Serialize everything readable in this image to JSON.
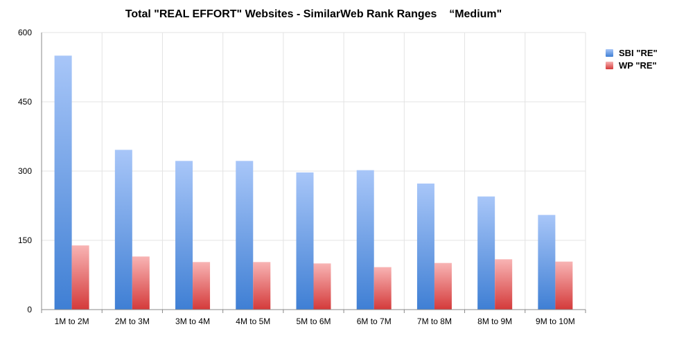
{
  "chart_data": {
    "type": "bar",
    "title": "Total \"REAL EFFORT\" Websites - SimilarWeb Rank Ranges    “Medium\"",
    "categories": [
      "1M to 2M",
      "2M to 3M",
      "3M to 4M",
      "4M to 5M",
      "5M to 6M",
      "6M to 7M",
      "7M to 8M",
      "8M to 9M",
      "9M to 10M"
    ],
    "series": [
      {
        "name": "SBI \"RE\"",
        "values": [
          550,
          346,
          322,
          322,
          297,
          302,
          273,
          245,
          205
        ],
        "color_top": "#a8c6f8",
        "color_bottom": "#3f7fd4"
      },
      {
        "name": "WP \"RE\"",
        "values": [
          139,
          115,
          103,
          103,
          100,
          92,
          101,
          109,
          104
        ],
        "color_top": "#f8b4b4",
        "color_bottom": "#d43a3a"
      }
    ],
    "y_ticks": [
      "0",
      "150",
      "300",
      "450",
      "600"
    ],
    "ylim": [
      0,
      600
    ],
    "grid": true,
    "legend_position": "top-right"
  }
}
